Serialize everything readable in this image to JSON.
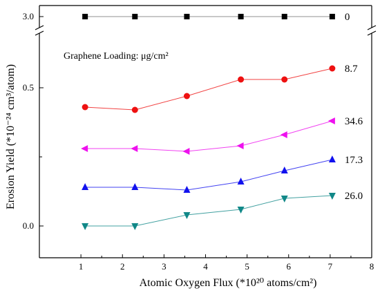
{
  "chart_data": {
    "type": "line",
    "xlabel": "Atomic Oxygen Flux (*10²⁰ atoms/cm²)",
    "ylabel": "Erosion Yield (*10⁻²⁴ cm³/atom)",
    "annotation": "Graphene Loading: μg/cm²",
    "xlim": [
      0,
      8
    ],
    "x_ticks": [
      1,
      2,
      3,
      4,
      5,
      6,
      7,
      8
    ],
    "y_ticks": [
      "0.0",
      "0.5",
      "3.0"
    ],
    "y_broken": true,
    "y_break_between": [
      0.7,
      3.0
    ],
    "x": [
      1.1,
      2.3,
      3.55,
      4.85,
      5.9,
      7.05
    ],
    "series": [
      {
        "name": "0",
        "marker": "square",
        "color": "#000000",
        "values": [
          3.0,
          3.0,
          3.0,
          3.0,
          3.0,
          3.0
        ]
      },
      {
        "name": "8.7",
        "marker": "circle",
        "color": "#ee1111",
        "values": [
          0.43,
          0.42,
          0.47,
          0.53,
          0.53,
          0.57
        ]
      },
      {
        "name": "34.6",
        "marker": "triangle-left",
        "color": "#ee11ee",
        "values": [
          0.28,
          0.28,
          0.27,
          0.29,
          0.33,
          0.38
        ]
      },
      {
        "name": "17.3",
        "marker": "triangle-up",
        "color": "#1111ee",
        "values": [
          0.14,
          0.14,
          0.13,
          0.16,
          0.2,
          0.24
        ]
      },
      {
        "name": "26.0",
        "marker": "triangle-down",
        "color": "#118888",
        "values": [
          0.0,
          0.0,
          0.04,
          0.06,
          0.1,
          0.11
        ]
      }
    ]
  }
}
